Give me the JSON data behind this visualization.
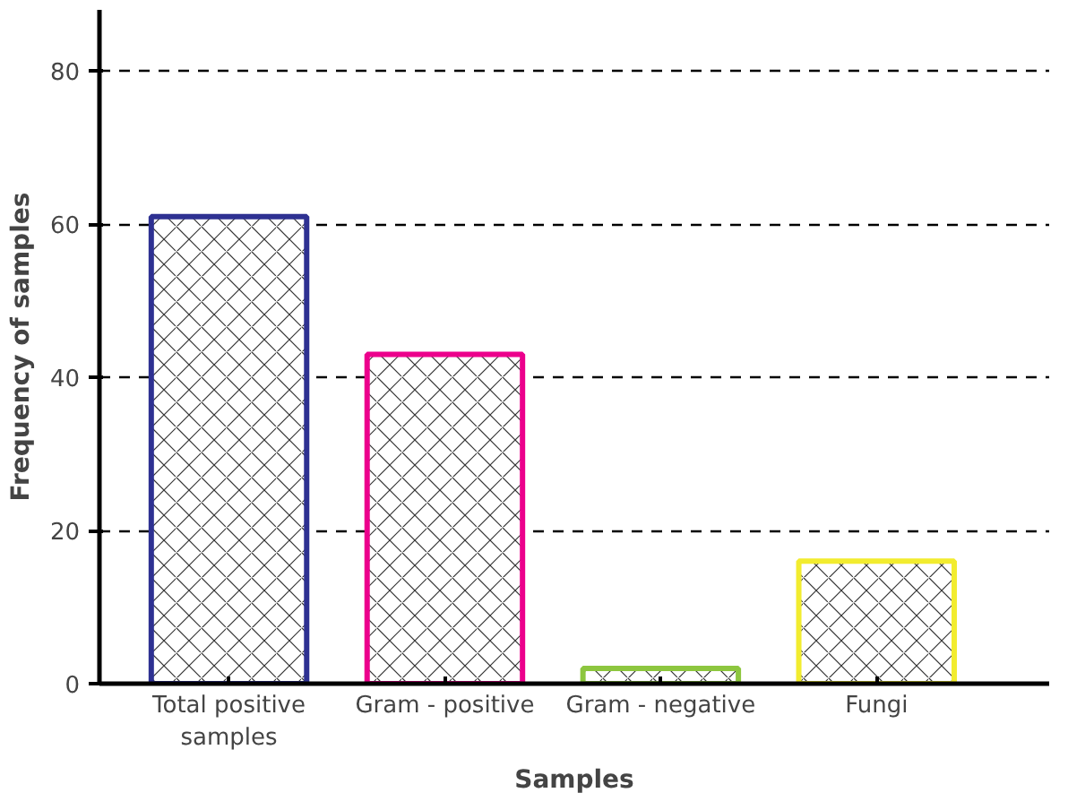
{
  "chart_data": {
    "type": "bar",
    "xlabel": "Samples",
    "ylabel": "Frequency of samples",
    "categories": [
      "Total positive samples",
      "Gram - positive",
      "Gram - negative",
      "Fungi"
    ],
    "values": [
      61,
      43,
      2,
      16
    ],
    "colors": [
      "#2e3192",
      "#ec008c",
      "#8dc63f",
      "#f2ec2f"
    ],
    "ylim": [
      0,
      88
    ],
    "yticks": [
      0,
      20,
      40,
      60,
      80
    ],
    "grid": "y"
  }
}
